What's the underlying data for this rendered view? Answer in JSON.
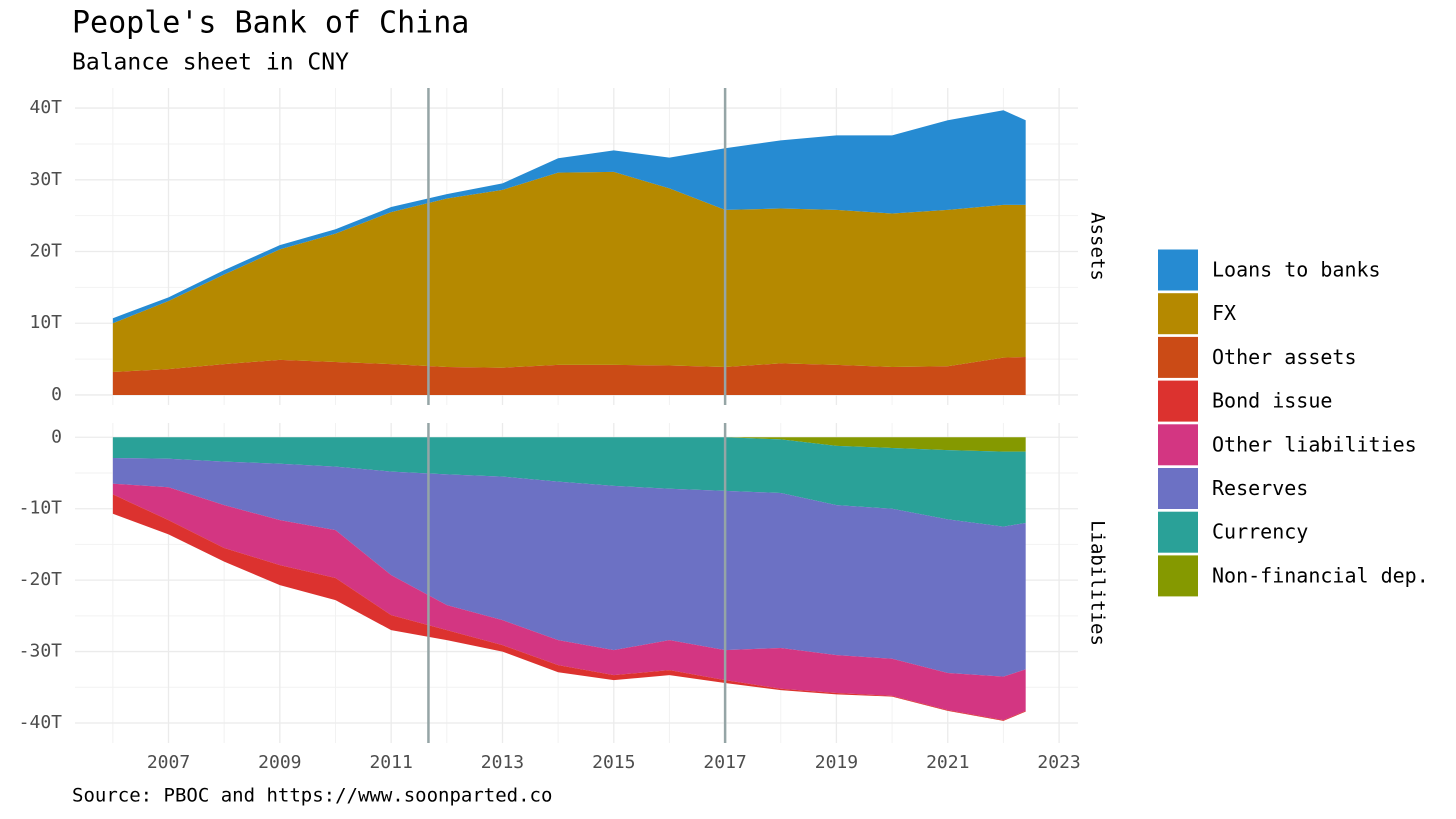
{
  "title": "People's Bank of China",
  "subtitle": "Balance sheet in CNY",
  "caption": "Source: PBOC and https://www.soonparted.co",
  "chart_data": [
    {
      "type": "area",
      "stacked": true,
      "facet": "Assets",
      "x": [
        2006,
        2007,
        2008,
        2009,
        2010,
        2011,
        2012,
        2013,
        2014,
        2015,
        2016,
        2017,
        2018,
        2019,
        2020,
        2021,
        2022,
        2022.4
      ],
      "series": [
        {
          "name": "Other assets",
          "color": "#cb4b16",
          "values": [
            3.2,
            3.6,
            4.3,
            4.9,
            4.6,
            4.3,
            3.9,
            3.8,
            4.2,
            4.2,
            4.1,
            3.9,
            4.4,
            4.2,
            3.9,
            4.0,
            5.2,
            5.3
          ]
        },
        {
          "name": "FX",
          "color": "#b58900",
          "values": [
            6.8,
            9.5,
            12.5,
            15.4,
            17.9,
            21.2,
            23.5,
            24.8,
            26.8,
            26.9,
            24.7,
            21.9,
            21.6,
            21.6,
            21.4,
            21.8,
            21.3,
            21.2
          ]
        },
        {
          "name": "Loans to banks",
          "color": "#268bd2",
          "values": [
            0.7,
            0.5,
            0.6,
            0.6,
            0.6,
            0.7,
            0.6,
            0.9,
            2.0,
            3.0,
            4.3,
            8.6,
            9.5,
            10.4,
            10.9,
            12.5,
            13.2,
            11.8
          ]
        }
      ],
      "xlim": [
        2005.32,
        2023.34
      ],
      "ylim": [
        -1.4,
        42.8
      ],
      "yticks": [
        0,
        {
          "value": 10,
          "label": "10T"
        },
        {
          "value": 20,
          "label": "20T"
        },
        {
          "value": 30,
          "label": "30T"
        },
        {
          "value": 40,
          "label": "40T"
        }
      ],
      "vlines": [
        2011.67,
        2017.0
      ],
      "vline_color": "#95a5a6",
      "grid": true
    },
    {
      "type": "area",
      "stacked": true,
      "facet": "Liabilities",
      "x": [
        2006,
        2007,
        2008,
        2009,
        2010,
        2011,
        2012,
        2013,
        2014,
        2015,
        2016,
        2017,
        2018,
        2019,
        2020,
        2021,
        2022,
        2022.4
      ],
      "series": [
        {
          "name": "Non-financial dep.",
          "color": "#859900",
          "values": [
            0,
            0,
            0,
            0,
            0,
            0,
            0,
            0,
            0,
            0,
            0,
            0,
            -0.3,
            -1.2,
            -1.5,
            -1.8,
            -2.0,
            -2.0
          ]
        },
        {
          "name": "Currency",
          "color": "#2aa198",
          "values": [
            -2.9,
            -3.0,
            -3.4,
            -3.7,
            -4.1,
            -4.8,
            -5.2,
            -5.5,
            -6.2,
            -6.8,
            -7.2,
            -7.5,
            -7.5,
            -8.3,
            -8.5,
            -9.7,
            -10.5,
            -10.0
          ]
        },
        {
          "name": "Reserves",
          "color": "#6c71c4",
          "values": [
            -3.6,
            -4.0,
            -6.1,
            -7.9,
            -8.9,
            -14.5,
            -18.3,
            -20.1,
            -22.2,
            -23.0,
            -21.2,
            -22.3,
            -21.7,
            -21.0,
            -21.0,
            -21.5,
            -21.0,
            -20.5
          ]
        },
        {
          "name": "Other liabilities",
          "color": "#d33682",
          "values": [
            -1.5,
            -4.6,
            -6.0,
            -6.3,
            -6.7,
            -5.6,
            -3.5,
            -3.5,
            -3.5,
            -3.5,
            -4.2,
            -4.2,
            -5.7,
            -5.3,
            -5.2,
            -5.2,
            -6.1,
            -5.8
          ]
        },
        {
          "name": "Bond issue",
          "color": "#dc322f",
          "values": [
            -2.7,
            -2.0,
            -1.9,
            -2.8,
            -3.1,
            -2.1,
            -1.4,
            -0.9,
            -1.0,
            -0.7,
            -0.7,
            -0.4,
            -0.2,
            -0.2,
            -0.1,
            -0.1,
            -0.1,
            -0.1
          ]
        }
      ],
      "xlim": [
        2005.32,
        2023.34
      ],
      "ylim": [
        -42.8,
        2.0
      ],
      "xticks": [
        2007,
        2009,
        2011,
        2013,
        2015,
        2017,
        2019,
        2021,
        2023
      ],
      "yticks": [
        {
          "value": -40,
          "label": "-40T"
        },
        {
          "value": -30,
          "label": "-30T"
        },
        {
          "value": -20,
          "label": "-20T"
        },
        {
          "value": -10,
          "label": "-10T"
        },
        0
      ],
      "vlines": [
        2011.67,
        2017.0
      ],
      "vline_color": "#95a5a6",
      "grid": true
    }
  ]
}
